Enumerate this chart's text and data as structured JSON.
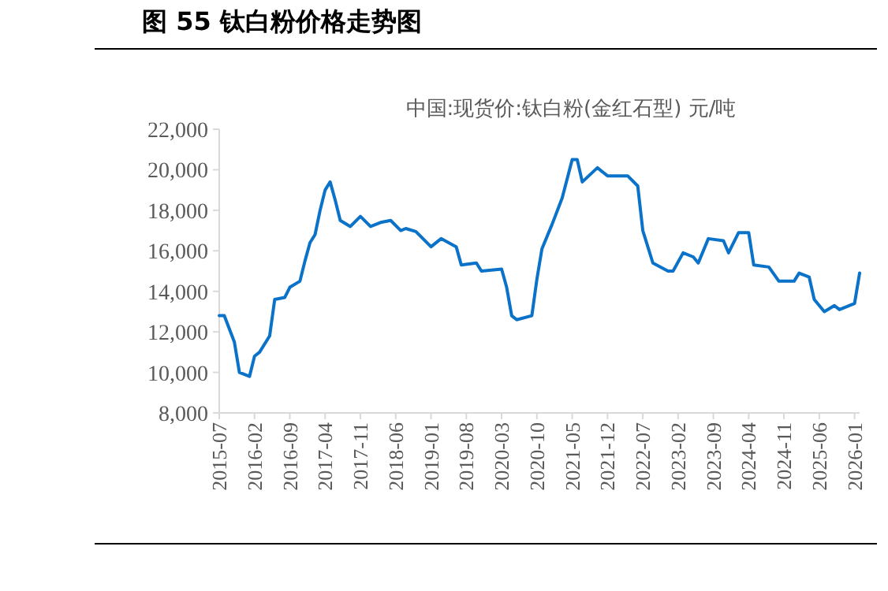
{
  "chart_data": {
    "type": "line",
    "title": "图 55 钛白粉价格走势图",
    "subtitle": "中国:现货价:钛白粉(金红石型) 元/吨",
    "x": [
      "2015-07",
      "2015-08",
      "2015-10",
      "2015-11",
      "2015-12",
      "2016-01",
      "2016-02",
      "2016-03",
      "2016-05",
      "2016-06",
      "2016-08",
      "2016-09",
      "2016-11",
      "2016-12",
      "2017-01",
      "2017-02",
      "2017-03",
      "2017-04",
      "2017-05",
      "2017-06",
      "2017-07",
      "2017-09",
      "2017-11",
      "2018-01",
      "2018-03",
      "2018-05",
      "2018-07",
      "2018-08",
      "2018-10",
      "2019-01",
      "2019-03",
      "2019-06",
      "2019-07",
      "2019-10",
      "2019-11",
      "2020-03",
      "2020-04",
      "2020-05",
      "2020-06",
      "2020-09",
      "2020-10",
      "2020-11",
      "2021-01",
      "2021-03",
      "2021-05",
      "2021-06",
      "2021-07",
      "2021-10",
      "2021-12",
      "2022-04",
      "2022-06",
      "2022-07",
      "2022-09",
      "2022-12",
      "2023-01",
      "2023-03",
      "2023-05",
      "2023-06",
      "2023-08",
      "2023-11",
      "2023-12",
      "2024-02",
      "2024-04",
      "2024-05",
      "2024-08",
      "2024-10",
      "2025-01",
      "2025-02",
      "2025-04",
      "2025-05",
      "2025-07",
      "2025-09",
      "2025-10",
      "2026-01",
      "2026-02"
    ],
    "series": [
      {
        "color": "#0a72c9",
        "values": [
          12800,
          12800,
          11500,
          10000,
          9900,
          9800,
          10800,
          11000,
          11800,
          13600,
          13700,
          14200,
          14500,
          15500,
          16400,
          16800,
          18000,
          19000,
          19400,
          18500,
          17500,
          17200,
          17700,
          17200,
          17400,
          17500,
          17000,
          17100,
          16950,
          16200,
          16600,
          16200,
          15300,
          15400,
          15000,
          15100,
          14200,
          12800,
          12600,
          12800,
          14600,
          16100,
          17300,
          18600,
          20500,
          20500,
          19400,
          20100,
          19700,
          19700,
          19200,
          17000,
          15400,
          15000,
          15000,
          15900,
          15700,
          15400,
          16600,
          16500,
          15900,
          16900,
          16900,
          15300,
          15200,
          14500,
          14500,
          14900,
          14700,
          13600,
          13000,
          13300,
          13100,
          13400,
          14900
        ]
      }
    ],
    "xlim": [
      "2015-07",
      "2026-02"
    ],
    "xticks": [
      "2015-07",
      "2016-02",
      "2016-09",
      "2017-04",
      "2017-11",
      "2018-06",
      "2019-01",
      "2019-08",
      "2020-03",
      "2020-10",
      "2021-05",
      "2021-12",
      "2022-07",
      "2023-02",
      "2023-09",
      "2024-04",
      "2024-11",
      "2025-06",
      "2026-01"
    ],
    "ylim": [
      8000,
      22000
    ],
    "yticks": [
      {
        "value": 8000,
        "label": "8,000"
      },
      {
        "value": 10000,
        "label": "10,000"
      },
      {
        "value": 12000,
        "label": "12,000"
      },
      {
        "value": 14000,
        "label": "14,000"
      },
      {
        "value": 16000,
        "label": "16,000"
      },
      {
        "value": 18000,
        "label": "18,000"
      },
      {
        "value": 20000,
        "label": "20,000"
      },
      {
        "value": 22000,
        "label": "22,000"
      }
    ],
    "grid": false,
    "marker": "none",
    "line_style": "solid"
  }
}
